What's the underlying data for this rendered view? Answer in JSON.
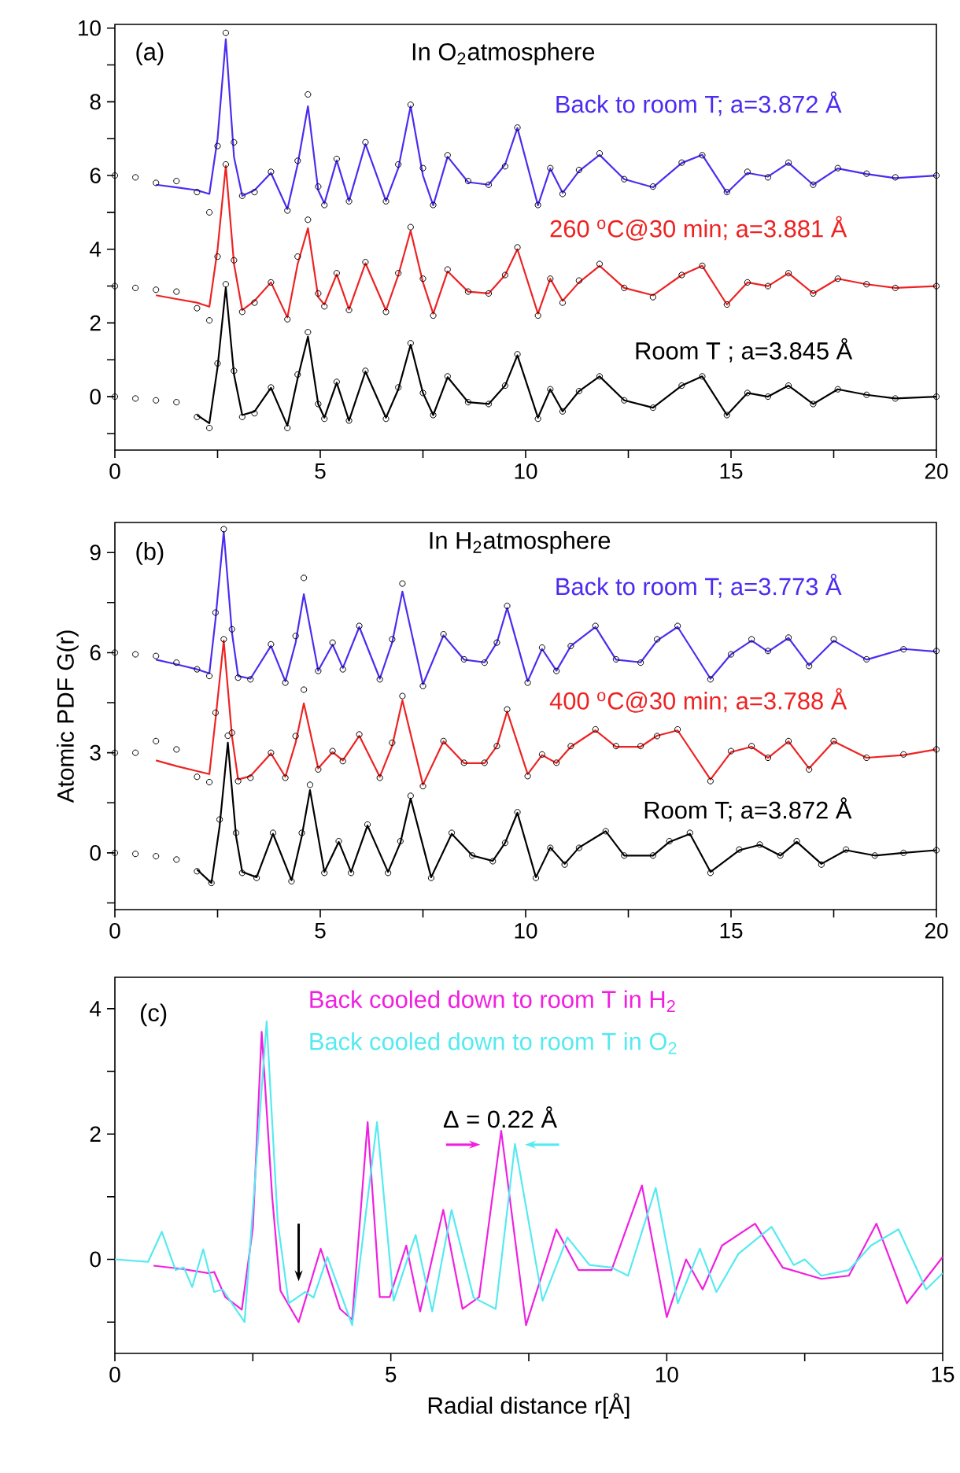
{
  "chart_data": [
    {
      "type": "line",
      "xlim": [
        0,
        20
      ],
      "ylim": [
        -1.45,
        10.1
      ],
      "xticks": [
        0,
        {
          "value": 2.5,
          "label": null
        },
        5,
        {
          "value": 7.5,
          "label": null
        },
        10,
        {
          "value": 12.5,
          "label": null
        },
        15,
        {
          "value": 17.5,
          "label": null
        },
        20
      ],
      "yticks": [
        {
          "value": -1,
          "label": null
        },
        0,
        {
          "value": 1,
          "label": null
        },
        2,
        {
          "value": 3,
          "label": null
        },
        4,
        {
          "value": 5,
          "label": null
        },
        6,
        {
          "value": 7,
          "label": null
        },
        8,
        {
          "value": 9,
          "label": null
        },
        10
      ],
      "annotations": [
        "(a)",
        "In O$_{2}$atmosphere"
      ],
      "series": [
        {
          "type": "scatter",
          "marker": "circle",
          "color": "#000000",
          "x": [
            0,
            0.5,
            1,
            1.5,
            2,
            2.3,
            2.5,
            2.7,
            2.9,
            3.1,
            3.4,
            3.8,
            4.2,
            4.45,
            4.7,
            4.95,
            5.1,
            5.4,
            5.7,
            6.1,
            6.6,
            6.9,
            7.2,
            7.5,
            7.75,
            8.1,
            8.6,
            9.1,
            9.5,
            9.8,
            10.3,
            10.6,
            10.9,
            11.3,
            11.8,
            12.4,
            13.1,
            13.8,
            14.3,
            14.9,
            15.4,
            15.9,
            16.4,
            17,
            17.6,
            18.3,
            19,
            20
          ],
          "values": [
            6.0,
            5.95,
            5.8,
            5.85,
            5.55,
            5.0,
            6.8,
            9.87,
            6.9,
            5.45,
            5.55,
            6.1,
            5.05,
            6.4,
            8.2,
            5.7,
            5.2,
            6.45,
            5.3,
            6.9,
            5.3,
            6.3,
            7.92,
            6.2,
            5.2,
            6.55,
            5.85,
            5.75,
            6.25,
            7.3,
            5.2,
            6.2,
            5.5,
            6.15,
            6.6,
            5.9,
            5.7,
            6.35,
            6.55,
            5.55,
            6.1,
            5.95,
            6.35,
            5.75,
            6.2,
            6.05,
            5.95,
            6.0
          ]
        },
        {
          "type": "line",
          "name": "Back to room T;  a=3.872 Å",
          "color": "#4b2cf0",
          "x": [
            1,
            1.5,
            2,
            2.3,
            2.5,
            2.7,
            2.9,
            3.1,
            3.4,
            3.8,
            4.2,
            4.45,
            4.7,
            4.95,
            5.1,
            5.4,
            5.7,
            6.1,
            6.6,
            6.9,
            7.2,
            7.5,
            7.75,
            8.1,
            8.6,
            9.1,
            9.5,
            9.8,
            10.3,
            10.6,
            10.9,
            11.3,
            11.8,
            12.4,
            13.1,
            13.8,
            14.3,
            14.9,
            15.4,
            15.9,
            16.4,
            17,
            17.6,
            18.3,
            19,
            20
          ],
          "values": [
            5.75,
            5.68,
            5.6,
            5.5,
            7.0,
            9.7,
            6.5,
            5.45,
            5.6,
            6.07,
            5.09,
            6.3,
            7.88,
            5.6,
            5.24,
            6.41,
            5.31,
            6.85,
            5.31,
            6.2,
            7.88,
            6.0,
            5.19,
            6.51,
            5.82,
            5.75,
            6.3,
            7.29,
            5.19,
            6.19,
            5.53,
            6.12,
            6.56,
            5.9,
            5.68,
            6.34,
            6.56,
            5.53,
            6.07,
            5.97,
            6.34,
            5.75,
            6.19,
            6.04,
            5.93,
            6.0
          ]
        },
        {
          "type": "scatter",
          "marker": "circle",
          "color": "#000000",
          "x": [
            0,
            0.5,
            1,
            1.5,
            2,
            2.3,
            2.5,
            2.7,
            2.9,
            3.1,
            3.4,
            3.8,
            4.2,
            4.45,
            4.7,
            4.95,
            5.1,
            5.4,
            5.7,
            6.1,
            6.6,
            6.9,
            7.2,
            7.5,
            7.75,
            8.1,
            8.6,
            9.1,
            9.5,
            9.8,
            10.3,
            10.6,
            10.9,
            11.3,
            11.8,
            12.4,
            13.1,
            13.8,
            14.3,
            14.9,
            15.4,
            15.9,
            16.4,
            17,
            17.6,
            18.3,
            19,
            20
          ],
          "values": [
            3.0,
            2.95,
            2.9,
            2.85,
            2.4,
            2.07,
            3.8,
            6.3,
            3.7,
            2.3,
            2.55,
            3.1,
            2.1,
            3.8,
            4.8,
            2.8,
            2.45,
            3.35,
            2.35,
            3.65,
            2.3,
            3.35,
            4.6,
            3.2,
            2.2,
            3.45,
            2.85,
            2.8,
            3.3,
            4.05,
            2.2,
            3.2,
            2.55,
            3.15,
            3.6,
            2.95,
            2.7,
            3.3,
            3.55,
            2.5,
            3.1,
            3.0,
            3.35,
            2.8,
            3.2,
            3.05,
            2.95,
            3.0
          ]
        },
        {
          "type": "line",
          "name": "260 $^{o}$C@30 min; a=3.881 Å",
          "color": "#ee2222",
          "x": [
            1,
            1.5,
            2,
            2.3,
            2.5,
            2.7,
            2.9,
            3.1,
            3.4,
            3.8,
            4.2,
            4.45,
            4.7,
            4.95,
            5.1,
            5.4,
            5.7,
            6.1,
            6.6,
            6.9,
            7.2,
            7.5,
            7.75,
            8.1,
            8.6,
            9.1,
            9.5,
            9.8,
            10.3,
            10.6,
            10.9,
            11.3,
            11.8,
            12.4,
            13.1,
            13.8,
            14.3,
            14.9,
            15.4,
            15.9,
            16.4,
            17,
            17.6,
            18.3,
            19,
            20
          ],
          "values": [
            2.75,
            2.65,
            2.55,
            2.44,
            4.0,
            6.26,
            3.6,
            2.35,
            2.6,
            3.1,
            2.15,
            3.6,
            4.57,
            2.7,
            2.5,
            3.32,
            2.37,
            3.62,
            2.34,
            3.3,
            4.5,
            3.1,
            2.25,
            3.4,
            2.85,
            2.8,
            3.3,
            4.0,
            2.25,
            3.2,
            2.6,
            3.1,
            3.55,
            2.95,
            2.75,
            3.3,
            3.55,
            2.5,
            3.1,
            3.0,
            3.35,
            2.8,
            3.2,
            3.05,
            2.95,
            3.0
          ]
        },
        {
          "type": "scatter",
          "marker": "circle",
          "color": "#000000",
          "x": [
            0,
            0.5,
            1,
            1.5,
            2,
            2.3,
            2.5,
            2.7,
            2.9,
            3.1,
            3.4,
            3.8,
            4.2,
            4.45,
            4.7,
            4.95,
            5.1,
            5.4,
            5.7,
            6.1,
            6.6,
            6.9,
            7.2,
            7.5,
            7.75,
            8.1,
            8.6,
            9.1,
            9.5,
            9.8,
            10.3,
            10.6,
            10.9,
            11.3,
            11.8,
            12.4,
            13.1,
            13.8,
            14.3,
            14.9,
            15.4,
            15.9,
            16.4,
            17,
            17.6,
            18.3,
            19,
            20
          ],
          "values": [
            0.0,
            -0.05,
            -0.1,
            -0.15,
            -0.55,
            -0.85,
            0.9,
            3.05,
            0.7,
            -0.55,
            -0.45,
            0.25,
            -0.85,
            0.6,
            1.75,
            -0.2,
            -0.6,
            0.4,
            -0.65,
            0.7,
            -0.6,
            0.25,
            1.45,
            0.1,
            -0.5,
            0.55,
            -0.15,
            -0.2,
            0.3,
            1.15,
            -0.6,
            0.2,
            -0.4,
            0.15,
            0.55,
            -0.1,
            -0.3,
            0.3,
            0.55,
            -0.5,
            0.1,
            0.0,
            0.3,
            -0.2,
            0.2,
            0.05,
            -0.05,
            0.0
          ]
        },
        {
          "type": "line",
          "name": "Room T ; a=3.845 Å",
          "color": "#000000",
          "x": [
            2,
            2.3,
            2.5,
            2.7,
            2.9,
            3.1,
            3.4,
            3.8,
            4.2,
            4.45,
            4.7,
            4.95,
            5.1,
            5.4,
            5.7,
            6.1,
            6.6,
            6.9,
            7.2,
            7.5,
            7.75,
            8.1,
            8.6,
            9.1,
            9.5,
            9.8,
            10.3,
            10.6,
            10.9,
            11.3,
            11.8,
            12.4,
            13.1,
            13.8,
            14.3,
            14.9,
            15.4,
            15.9,
            16.4,
            17,
            17.6,
            18.3,
            19,
            20
          ],
          "values": [
            -0.5,
            -0.72,
            0.8,
            2.96,
            0.6,
            -0.5,
            -0.4,
            0.24,
            -0.79,
            0.5,
            1.63,
            -0.2,
            -0.57,
            0.38,
            -0.65,
            0.68,
            -0.57,
            0.2,
            1.41,
            0.1,
            -0.5,
            0.53,
            -0.15,
            -0.2,
            0.3,
            1.12,
            -0.57,
            0.2,
            -0.4,
            0.15,
            0.55,
            -0.1,
            -0.3,
            0.3,
            0.55,
            -0.5,
            0.1,
            0.0,
            0.3,
            -0.2,
            0.2,
            0.05,
            -0.05,
            0.0
          ]
        }
      ]
    },
    {
      "type": "line",
      "xlim": [
        0,
        20
      ],
      "ylim": [
        -1.7,
        9.9
      ],
      "ylabel": "Atomic PDF G(r)",
      "xticks": [
        0,
        {
          "value": 2.5,
          "label": null
        },
        5,
        {
          "value": 7.5,
          "label": null
        },
        10,
        {
          "value": 12.5,
          "label": null
        },
        15,
        {
          "value": 17.5,
          "label": null
        },
        20
      ],
      "yticks": [
        {
          "value": -1.5,
          "label": null
        },
        0,
        {
          "value": 1.5,
          "label": null
        },
        3,
        {
          "value": 4.5,
          "label": null
        },
        6,
        {
          "value": 7.5,
          "label": null
        },
        9
      ],
      "annotations": [
        "(b)",
        "In H$_{2}$atmosphere"
      ],
      "series": [
        {
          "type": "scatter",
          "marker": "circle",
          "color": "#000000",
          "x": [
            0,
            0.5,
            1,
            1.5,
            2,
            2.3,
            2.45,
            2.65,
            2.85,
            3.0,
            3.3,
            3.8,
            4.15,
            4.4,
            4.6,
            4.95,
            5.3,
            5.55,
            5.95,
            6.45,
            6.75,
            7.0,
            7.5,
            8.0,
            8.5,
            9.0,
            9.3,
            9.55,
            10.05,
            10.4,
            10.75,
            11.1,
            11.7,
            12.2,
            12.8,
            13.2,
            13.7,
            14.5,
            15.0,
            15.5,
            15.9,
            16.4,
            16.9,
            17.5,
            18.3,
            19.2,
            20
          ],
          "values": [
            6.0,
            5.95,
            5.9,
            5.7,
            5.5,
            5.3,
            7.2,
            9.7,
            6.7,
            5.25,
            5.2,
            6.25,
            5.1,
            6.5,
            8.24,
            5.45,
            6.3,
            5.5,
            6.8,
            5.2,
            6.4,
            8.07,
            5.0,
            6.55,
            5.8,
            5.7,
            6.3,
            7.4,
            5.1,
            6.15,
            5.45,
            6.2,
            6.8,
            5.8,
            5.7,
            6.4,
            6.8,
            5.2,
            5.95,
            6.4,
            6.05,
            6.45,
            5.6,
            6.4,
            5.8,
            6.1,
            6.05
          ]
        },
        {
          "type": "line",
          "name": "Back to room T; a=3.773 Å",
          "color": "#4b2cf0",
          "x": [
            1,
            1.5,
            2,
            2.3,
            2.45,
            2.65,
            2.85,
            3.0,
            3.3,
            3.8,
            4.15,
            4.4,
            4.6,
            4.95,
            5.3,
            5.55,
            5.95,
            6.45,
            6.75,
            7.0,
            7.5,
            8.0,
            8.5,
            9.0,
            9.3,
            9.55,
            10.05,
            10.4,
            10.75,
            11.1,
            11.7,
            12.2,
            12.8,
            13.2,
            13.7,
            14.5,
            15.0,
            15.5,
            15.9,
            16.4,
            16.9,
            17.5,
            18.3,
            19.2,
            20
          ],
          "values": [
            5.79,
            5.65,
            5.5,
            5.38,
            7.0,
            9.62,
            6.6,
            5.3,
            5.22,
            6.2,
            5.14,
            6.3,
            7.75,
            5.46,
            6.24,
            5.54,
            6.77,
            5.22,
            6.3,
            7.83,
            5.05,
            6.52,
            5.79,
            5.71,
            6.3,
            7.34,
            5.14,
            6.11,
            5.46,
            6.2,
            6.77,
            5.79,
            5.71,
            6.36,
            6.77,
            5.22,
            5.95,
            6.36,
            6.03,
            6.44,
            5.62,
            6.36,
            5.79,
            6.11,
            6.03
          ]
        },
        {
          "type": "scatter",
          "marker": "circle",
          "color": "#000000",
          "x": [
            0,
            0.5,
            1,
            1.5,
            2,
            2.3,
            2.45,
            2.65,
            2.85,
            3.0,
            3.3,
            3.8,
            4.15,
            4.4,
            4.6,
            4.95,
            5.3,
            5.55,
            5.95,
            6.45,
            6.75,
            7.0,
            7.5,
            8.0,
            8.5,
            9.0,
            9.3,
            9.55,
            10.05,
            10.4,
            10.75,
            11.1,
            11.7,
            12.2,
            12.8,
            13.2,
            13.7,
            14.5,
            15.0,
            15.5,
            15.9,
            16.4,
            16.9,
            17.5,
            18.3,
            19.2,
            20
          ],
          "values": [
            3.0,
            3.0,
            3.35,
            3.1,
            2.28,
            2.12,
            4.2,
            6.4,
            3.6,
            2.15,
            2.25,
            3.0,
            2.25,
            3.5,
            4.89,
            2.5,
            3.05,
            2.75,
            3.55,
            2.25,
            3.3,
            4.7,
            2.0,
            3.35,
            2.7,
            2.7,
            3.2,
            4.3,
            2.3,
            2.95,
            2.7,
            3.2,
            3.7,
            3.2,
            3.2,
            3.5,
            3.7,
            2.15,
            3.05,
            3.2,
            2.85,
            3.35,
            2.5,
            3.35,
            2.85,
            2.95,
            3.1
          ]
        },
        {
          "type": "line",
          "name": "400 $^{o}$C@30 min; a=3.788 Å",
          "color": "#ee2222",
          "x": [
            1,
            1.5,
            2,
            2.3,
            2.45,
            2.65,
            2.85,
            3.0,
            3.3,
            3.8,
            4.15,
            4.4,
            4.6,
            4.95,
            5.3,
            5.55,
            5.95,
            6.45,
            6.75,
            7.0,
            7.5,
            8.0,
            8.5,
            9.0,
            9.3,
            9.55,
            10.05,
            10.4,
            10.75,
            11.1,
            11.7,
            12.2,
            12.8,
            13.2,
            13.7,
            14.5,
            15.0,
            15.5,
            15.9,
            16.4,
            16.9,
            17.5,
            18.3,
            19.2,
            20
          ],
          "values": [
            2.77,
            2.6,
            2.45,
            2.36,
            4.0,
            6.36,
            3.5,
            2.2,
            2.3,
            2.98,
            2.28,
            3.3,
            4.48,
            2.53,
            3.02,
            2.77,
            3.51,
            2.28,
            3.2,
            4.57,
            2.04,
            3.34,
            2.69,
            2.69,
            3.2,
            4.24,
            2.36,
            2.93,
            2.69,
            3.18,
            3.67,
            3.18,
            3.18,
            3.51,
            3.67,
            2.2,
            3.02,
            3.18,
            2.85,
            3.34,
            2.53,
            3.34,
            2.85,
            2.93,
            3.1
          ]
        },
        {
          "type": "scatter",
          "marker": "circle",
          "color": "#000000",
          "x": [
            0,
            0.5,
            1,
            1.5,
            2,
            2.35,
            2.55,
            2.75,
            2.95,
            3.1,
            3.45,
            3.85,
            4.3,
            4.55,
            4.75,
            5.1,
            5.45,
            5.75,
            6.15,
            6.65,
            6.95,
            7.2,
            7.7,
            8.2,
            8.7,
            9.2,
            9.5,
            9.8,
            10.25,
            10.6,
            10.95,
            11.3,
            11.95,
            12.4,
            13.1,
            13.5,
            14.0,
            14.5,
            15.2,
            15.7,
            16.2,
            16.6,
            17.2,
            17.8,
            18.5,
            19.2,
            20
          ],
          "values": [
            0.0,
            -0.03,
            -0.1,
            -0.2,
            -0.55,
            -0.9,
            1.0,
            3.51,
            0.6,
            -0.6,
            -0.75,
            0.6,
            -0.85,
            0.6,
            2.04,
            -0.6,
            0.35,
            -0.6,
            0.85,
            -0.6,
            0.35,
            1.71,
            -0.75,
            0.6,
            -0.08,
            -0.25,
            0.3,
            1.22,
            -0.75,
            0.15,
            -0.35,
            0.15,
            0.65,
            -0.08,
            -0.08,
            0.35,
            0.6,
            -0.6,
            0.1,
            0.25,
            -0.08,
            0.35,
            -0.35,
            0.1,
            -0.08,
            0.0,
            0.08
          ]
        },
        {
          "type": "line",
          "name": "Room T;  a=3.872 Å",
          "color": "#000000",
          "x": [
            2,
            2.35,
            2.55,
            2.75,
            2.95,
            3.1,
            3.45,
            3.85,
            4.3,
            4.55,
            4.75,
            5.1,
            5.45,
            5.75,
            6.15,
            6.65,
            6.95,
            7.2,
            7.7,
            8.2,
            8.7,
            9.2,
            9.5,
            9.8,
            10.25,
            10.6,
            10.95,
            11.3,
            11.95,
            12.4,
            13.1,
            13.5,
            14.0,
            14.5,
            15.2,
            15.7,
            16.2,
            16.6,
            17.2,
            17.8,
            18.5,
            19.2,
            20
          ],
          "values": [
            -0.5,
            -0.9,
            0.8,
            3.3,
            0.5,
            -0.57,
            -0.73,
            0.57,
            -0.82,
            0.5,
            1.88,
            -0.57,
            0.33,
            -0.57,
            0.82,
            -0.57,
            0.3,
            1.63,
            -0.73,
            0.57,
            -0.08,
            -0.24,
            0.3,
            1.2,
            -0.73,
            0.16,
            -0.33,
            0.16,
            0.65,
            -0.08,
            -0.08,
            0.33,
            0.57,
            -0.57,
            0.08,
            0.24,
            -0.08,
            0.33,
            -0.33,
            0.08,
            -0.08,
            0.0,
            0.08
          ]
        }
      ]
    },
    {
      "type": "line",
      "xlim": [
        0,
        15
      ],
      "ylim": [
        -1.5,
        4.5
      ],
      "xlabel": "Radial distance r[Å]",
      "xticks": [
        0,
        {
          "value": 2.5,
          "label": null
        },
        5,
        {
          "value": 7.5,
          "label": null
        },
        10,
        {
          "value": 12.5,
          "label": null
        },
        15
      ],
      "yticks": [
        {
          "value": -1,
          "label": null
        },
        0,
        {
          "value": 1,
          "label": null
        },
        2,
        {
          "value": 3,
          "label": null
        },
        4
      ],
      "annotations": [
        "(c)",
        "Δ = 0.22 Å"
      ],
      "series": [
        {
          "name": "Back cooled down to room T in H$_{2}$",
          "color": "#f020e0",
          "x": [
            0.7,
            1.2,
            1.7,
            1.8,
            2.0,
            2.3,
            2.5,
            2.66,
            2.85,
            3.0,
            3.33,
            3.73,
            4.08,
            4.3,
            4.58,
            4.8,
            4.98,
            5.28,
            5.53,
            5.95,
            6.3,
            6.6,
            7.0,
            7.45,
            8.0,
            8.4,
            9.0,
            9.55,
            10.0,
            10.35,
            10.65,
            11.0,
            11.6,
            12.1,
            12.8,
            13.3,
            13.8,
            14.35,
            15.0
          ],
          "values": [
            -0.1,
            -0.15,
            -0.22,
            -0.2,
            -0.6,
            -0.8,
            0.5,
            3.63,
            1.0,
            -0.5,
            -1.0,
            0.17,
            -0.79,
            -0.96,
            2.19,
            -0.6,
            -0.6,
            0.22,
            -0.83,
            0.79,
            -0.79,
            -0.6,
            2.05,
            -1.05,
            0.48,
            -0.17,
            -0.17,
            1.18,
            -0.92,
            0,
            -0.48,
            0.22,
            0.57,
            -0.13,
            -0.31,
            -0.26,
            0.57,
            -0.7,
            0.04
          ]
        },
        {
          "name": "Back cooled down to room T in O$_{2}$",
          "color": "#55eaf0",
          "x": [
            0,
            0.6,
            0.85,
            1.1,
            1.25,
            1.4,
            1.6,
            1.8,
            1.95,
            2.35,
            2.75,
            2.95,
            3.15,
            3.45,
            3.6,
            3.85,
            4.3,
            4.75,
            5.05,
            5.45,
            5.75,
            6.1,
            6.5,
            6.9,
            7.25,
            7.75,
            8.2,
            8.6,
            9.0,
            9.3,
            9.8,
            10.2,
            10.6,
            10.9,
            11.3,
            11.9,
            12.3,
            12.5,
            12.8,
            13.3,
            13.7,
            14.2,
            14.7,
            15.0
          ],
          "values": [
            0,
            -0.04,
            0.44,
            -0.17,
            -0.13,
            -0.44,
            0.16,
            -0.52,
            -0.48,
            -1.0,
            3.8,
            0.6,
            -0.7,
            -0.52,
            -0.61,
            0.04,
            -1.05,
            2.19,
            -0.66,
            0.39,
            -0.83,
            0.79,
            -0.61,
            -0.79,
            1.84,
            -0.66,
            0.35,
            -0.09,
            -0.13,
            -0.26,
            1.14,
            -0.7,
            0.17,
            -0.52,
            0.09,
            0.52,
            -0.09,
            0,
            -0.26,
            -0.17,
            0.22,
            0.48,
            -0.48,
            -0.22
          ]
        }
      ]
    }
  ]
}
